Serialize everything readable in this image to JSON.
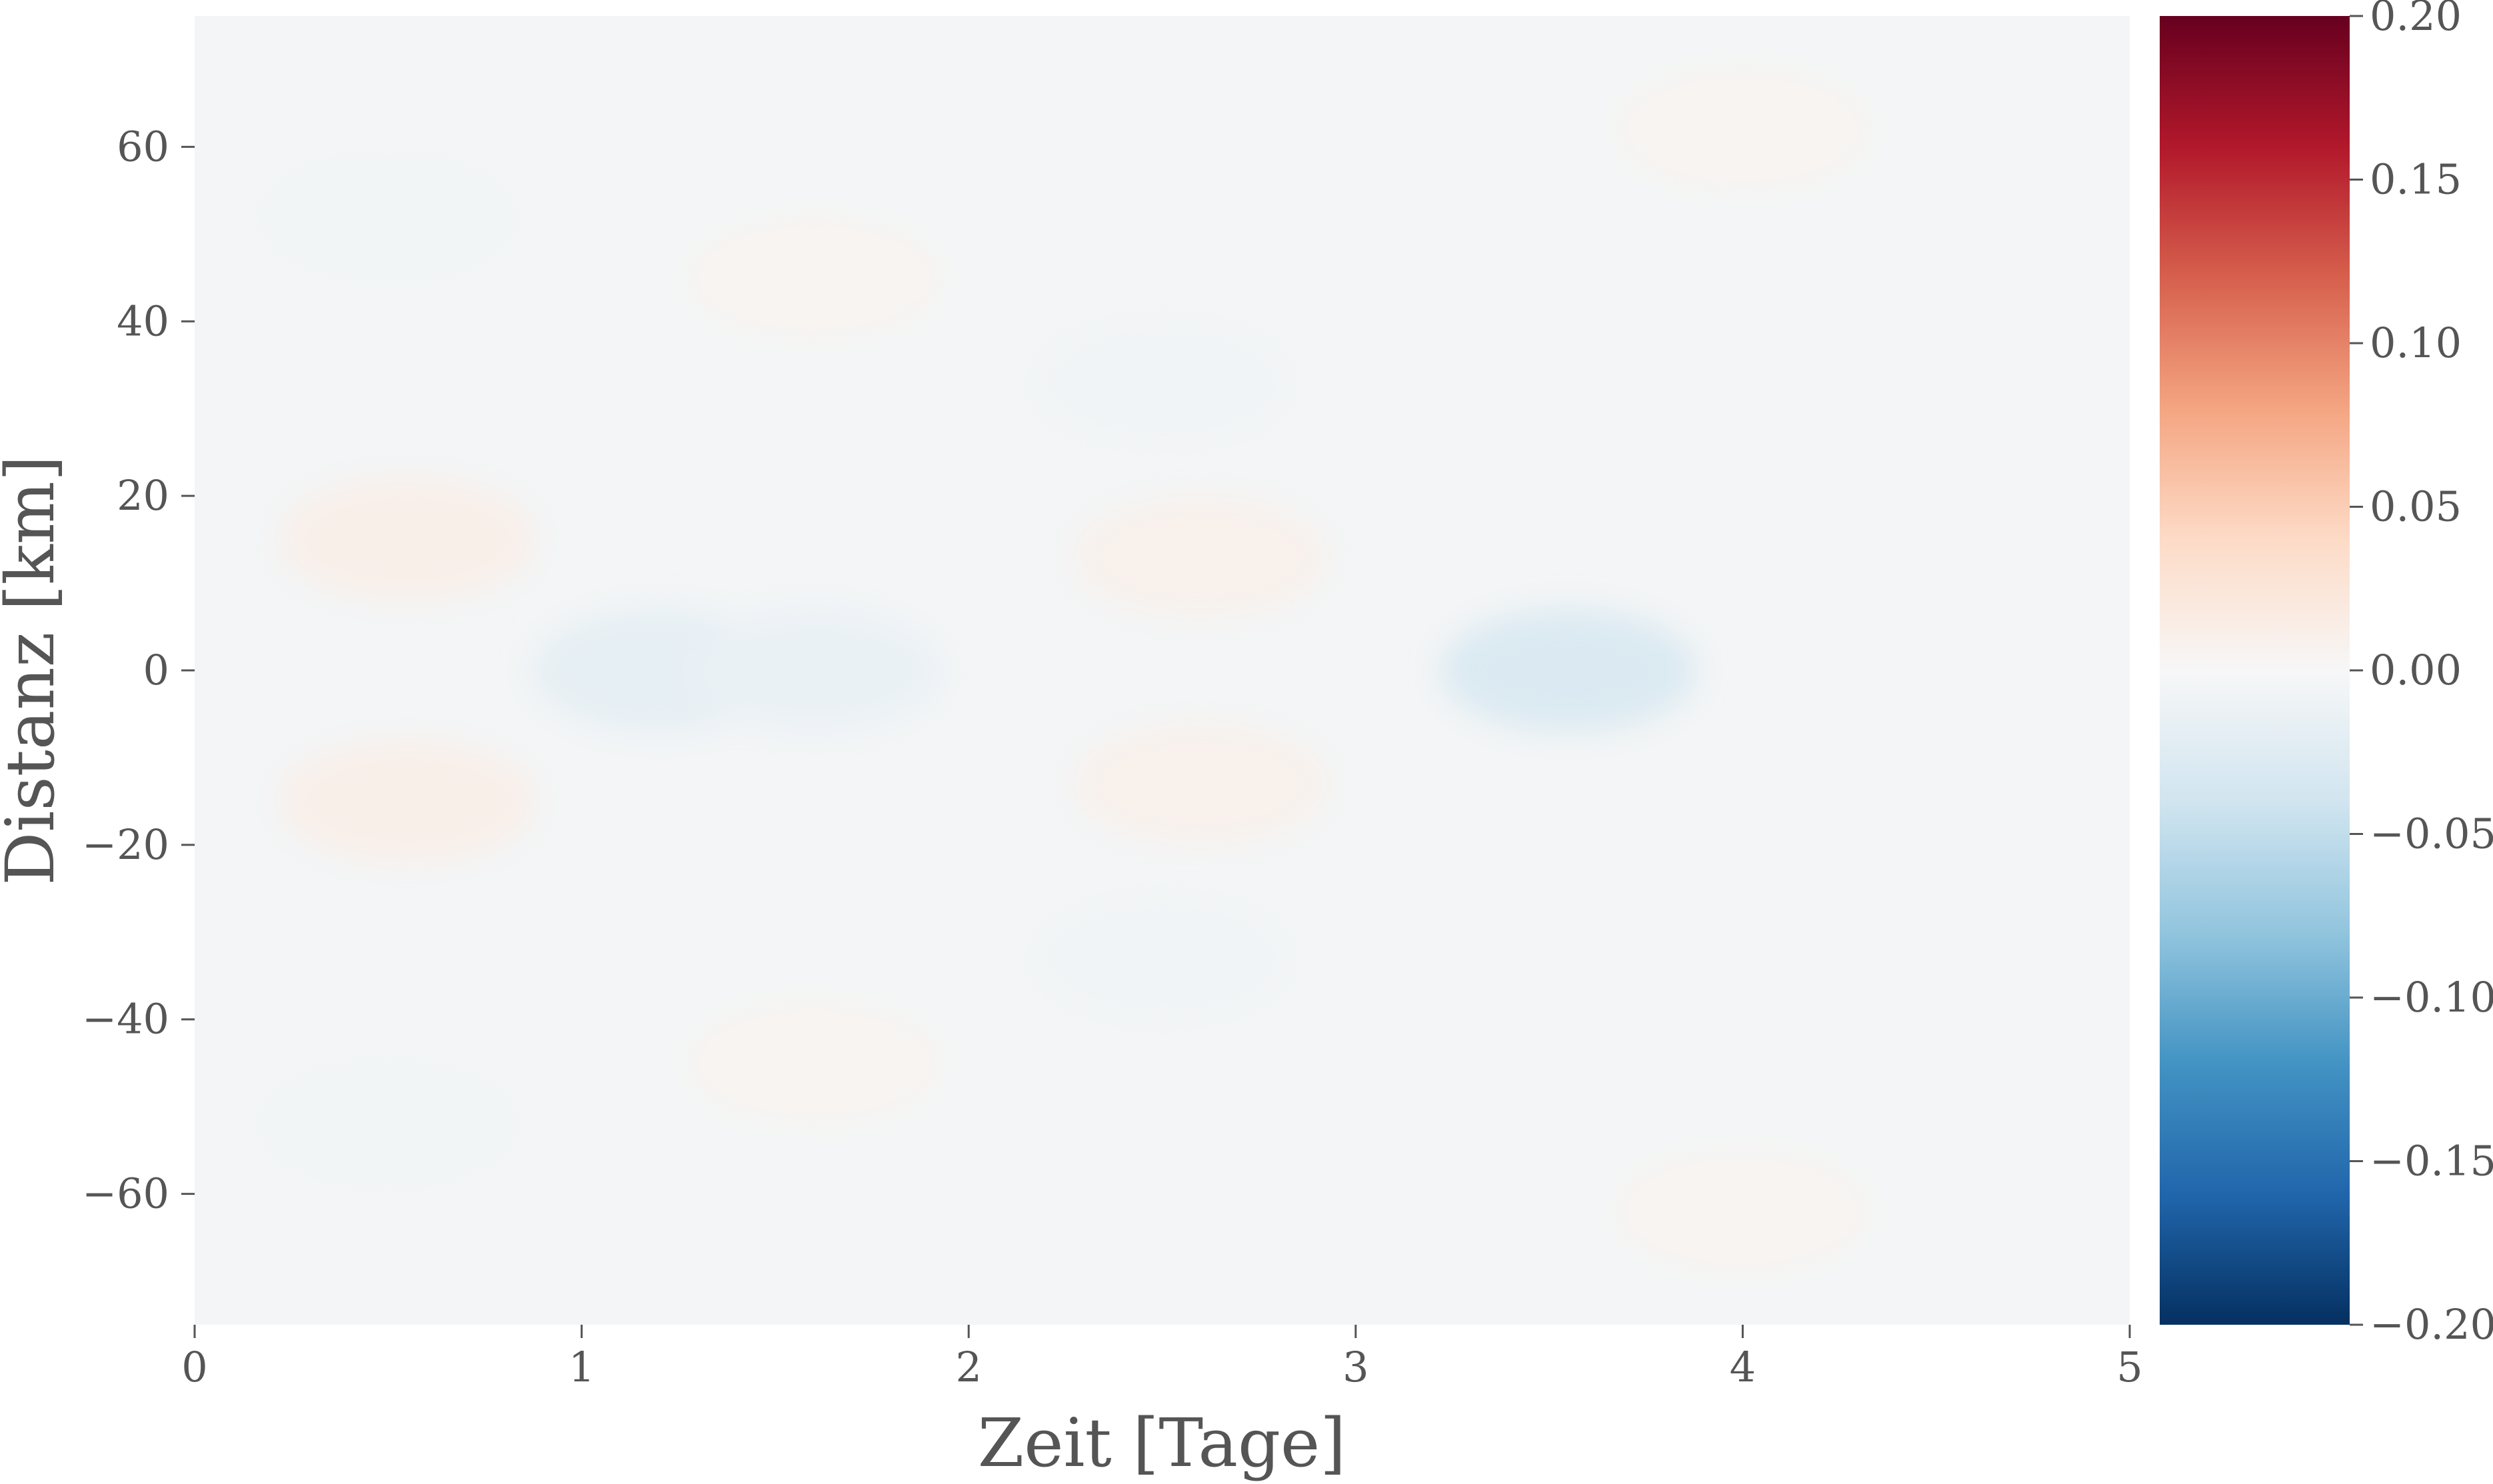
{
  "chart_data": {
    "type": "heatmap",
    "title": "",
    "xlabel": "Zeit [Tage]",
    "ylabel": "Distanz [km]",
    "xlim": [
      0,
      5
    ],
    "ylim": [
      -75,
      75
    ],
    "xticks": [
      0,
      1,
      2,
      3,
      4,
      5
    ],
    "xtick_labels": [
      "0",
      "1",
      "2",
      "3",
      "4",
      "5"
    ],
    "yticks": [
      -60,
      -40,
      -20,
      0,
      20,
      40,
      60
    ],
    "ytick_labels": [
      "−60",
      "−40",
      "−20",
      "0",
      "20",
      "40",
      "60"
    ],
    "grid": false,
    "colormap": "RdBu_r",
    "colormap_stops": [
      "#053061",
      "#2166ac",
      "#4393c3",
      "#92c5de",
      "#d1e5f0",
      "#f7f7f7",
      "#fddbc7",
      "#f4a582",
      "#d6604d",
      "#b2182b",
      "#67001f"
    ],
    "colorbar": {
      "vmin": -0.2,
      "vmax": 0.2,
      "ticks": [
        -0.2,
        -0.15,
        -0.1,
        -0.05,
        0.0,
        0.05,
        0.1,
        0.15,
        0.2
      ],
      "tick_labels": [
        "−0.20",
        "−0.15",
        "−0.10",
        "−0.05",
        "0.00",
        "0.05",
        "0.10",
        "0.15",
        "0.20"
      ]
    },
    "background_value": -0.004,
    "features": [
      {
        "x": 0.55,
        "y": 15,
        "value": 0.012
      },
      {
        "x": 0.55,
        "y": -15,
        "value": 0.012
      },
      {
        "x": 1.2,
        "y": 0,
        "value": -0.018
      },
      {
        "x": 1.6,
        "y": 0,
        "value": -0.014
      },
      {
        "x": 2.6,
        "y": 13,
        "value": 0.009
      },
      {
        "x": 2.6,
        "y": -13,
        "value": 0.009
      },
      {
        "x": 3.55,
        "y": 0,
        "value": -0.03
      },
      {
        "x": 2.5,
        "y": 33,
        "value": -0.006
      },
      {
        "x": 2.5,
        "y": -33,
        "value": -0.006
      },
      {
        "x": 4.0,
        "y": 62,
        "value": 0.005
      },
      {
        "x": 4.0,
        "y": -62,
        "value": 0.005
      },
      {
        "x": 1.6,
        "y": 45,
        "value": 0.005
      },
      {
        "x": 1.6,
        "y": -45,
        "value": 0.005
      },
      {
        "x": 0.5,
        "y": 52,
        "value": -0.005
      },
      {
        "x": 0.5,
        "y": -52,
        "value": -0.005
      }
    ]
  }
}
